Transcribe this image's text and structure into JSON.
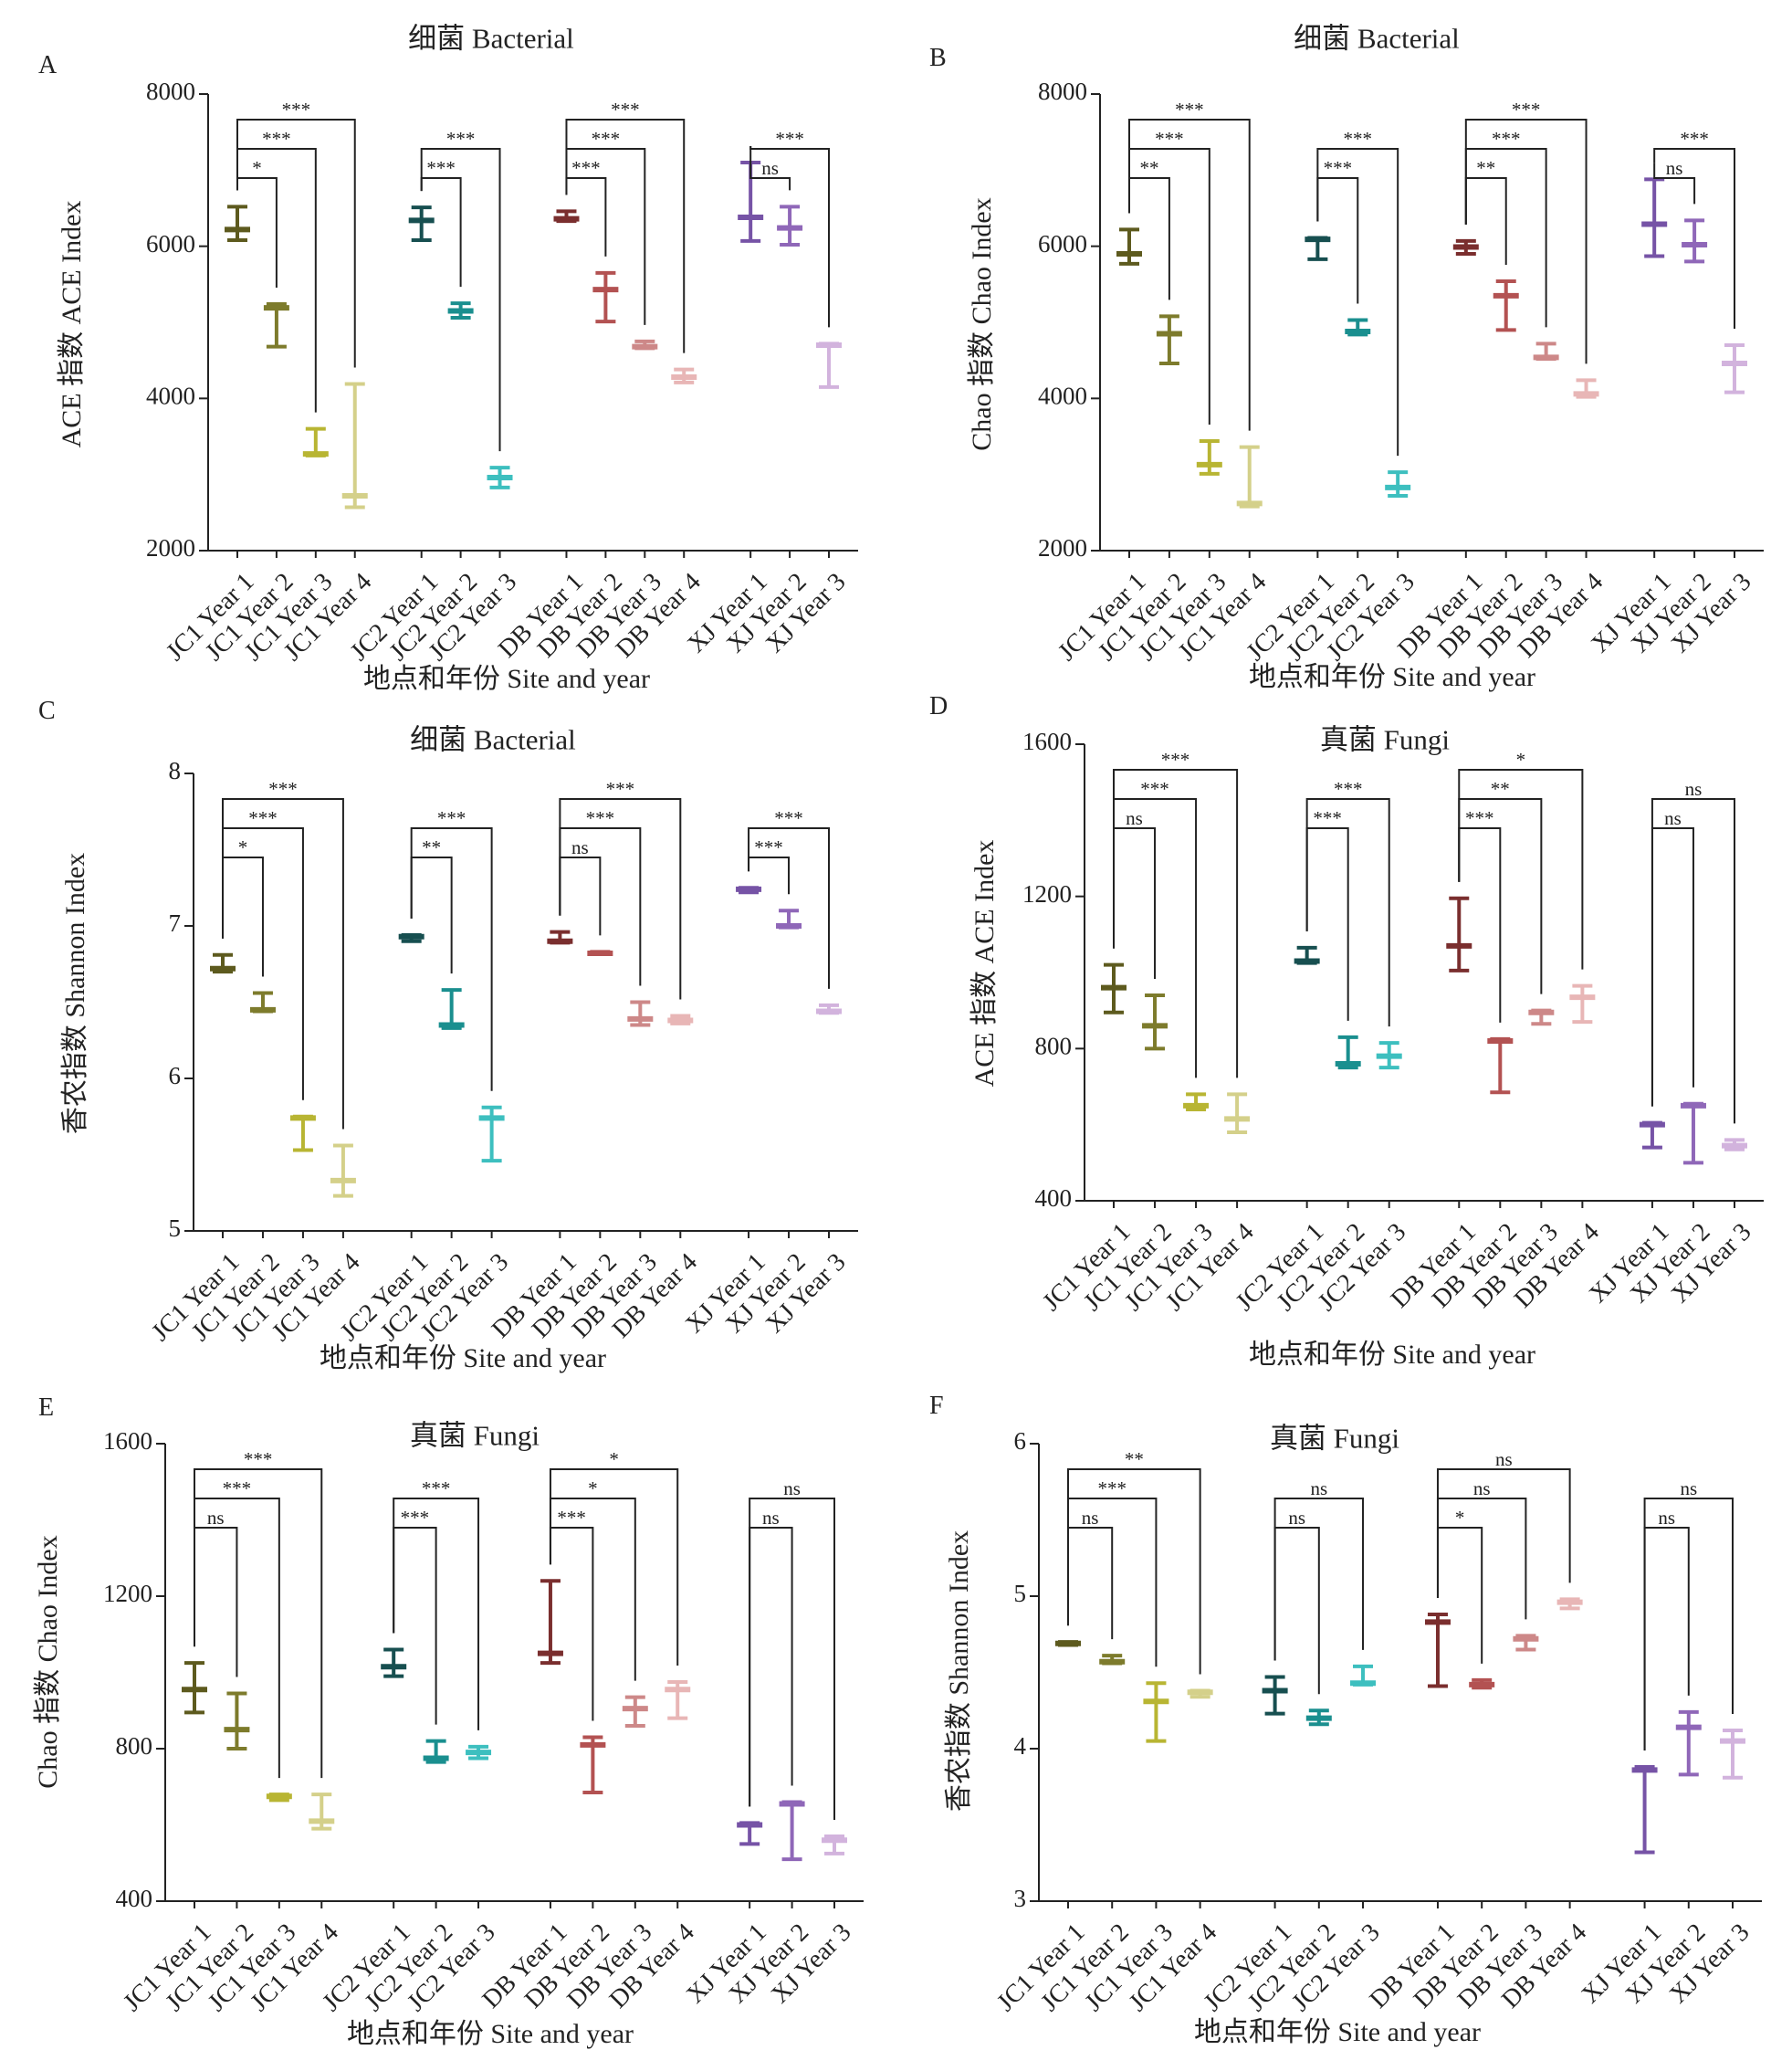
{
  "colors": {
    "JC1 Year 1": "#5d5a1e",
    "JC1 Year 2": "#7d7b2c",
    "JC1 Year 3": "#b8b533",
    "JC1 Year 4": "#d4d08a",
    "JC2 Year 1": "#174f50",
    "JC2 Year 2": "#1a8f8f",
    "JC2 Year 3": "#3dbfbf",
    "DB Year 1": "#7a2e2e",
    "DB Year 2": "#b35252",
    "DB Year 3": "#cd8888",
    "DB Year 4": "#e8b6b6",
    "XJ Year 1": "#7653a6",
    "XJ Year 2": "#8f67b8",
    "XJ Year 3": "#d2b3dd"
  },
  "categories": [
    "JC1 Year 1",
    "JC1 Year 2",
    "JC1 Year 3",
    "JC1 Year 4",
    "JC2 Year 1",
    "JC2 Year 2",
    "JC2 Year 3",
    "DB Year 1",
    "DB Year 2",
    "DB Year 3",
    "DB Year 4",
    "XJ Year 1",
    "XJ Year 2",
    "XJ Year 3"
  ],
  "chart_data": [
    {
      "panel": "A",
      "type": "scatter",
      "title": "细菌 Bacterial",
      "ylabel": "ACE 指数 ACE Index",
      "xlabel": "地点和年份 Site and year",
      "ylim": [
        2000,
        8000
      ],
      "yticks": [
        "2000",
        "4000",
        "6000",
        "8000"
      ],
      "series": [
        {
          "name": "JC1 Year 1",
          "mean": 6220,
          "low": 6080,
          "high": 6520
        },
        {
          "name": "JC1 Year 2",
          "mean": 5190,
          "low": 4680,
          "high": 5240
        },
        {
          "name": "JC1 Year 3",
          "mean": 3270,
          "low": 3250,
          "high": 3600
        },
        {
          "name": "JC1 Year 4",
          "mean": 2720,
          "low": 2570,
          "high": 4190
        },
        {
          "name": "JC2 Year 1",
          "mean": 6340,
          "low": 6080,
          "high": 6510
        },
        {
          "name": "JC2 Year 2",
          "mean": 5150,
          "low": 5060,
          "high": 5250
        },
        {
          "name": "JC2 Year 3",
          "mean": 2960,
          "low": 2830,
          "high": 3090
        },
        {
          "name": "DB Year 1",
          "mean": 6360,
          "low": 6330,
          "high": 6460
        },
        {
          "name": "DB Year 2",
          "mean": 5430,
          "low": 5010,
          "high": 5650
        },
        {
          "name": "DB Year 3",
          "mean": 4680,
          "low": 4660,
          "high": 4750
        },
        {
          "name": "DB Year 4",
          "mean": 4280,
          "low": 4210,
          "high": 4380
        },
        {
          "name": "XJ Year 1",
          "mean": 6380,
          "low": 6070,
          "high": 7100
        },
        {
          "name": "XJ Year 2",
          "mean": 6240,
          "low": 6020,
          "high": 6520
        },
        {
          "name": "XJ Year 3",
          "mean": 4700,
          "low": 4150,
          "high": 4720
        }
      ],
      "brackets": [
        {
          "from": "JC1 Year 1",
          "to": "JC1 Year 2",
          "label": "*"
        },
        {
          "from": "JC1 Year 1",
          "to": "JC1 Year 3",
          "label": "***"
        },
        {
          "from": "JC1 Year 1",
          "to": "JC1 Year 4",
          "label": "***"
        },
        {
          "from": "JC2 Year 1",
          "to": "JC2 Year 2",
          "label": "***"
        },
        {
          "from": "JC2 Year 1",
          "to": "JC2 Year 3",
          "label": "***"
        },
        {
          "from": "DB Year 1",
          "to": "DB Year 2",
          "label": "***"
        },
        {
          "from": "DB Year 1",
          "to": "DB Year 3",
          "label": "***"
        },
        {
          "from": "DB Year 1",
          "to": "DB Year 4",
          "label": "***"
        },
        {
          "from": "XJ Year 1",
          "to": "XJ Year 2",
          "label": "ns"
        },
        {
          "from": "XJ Year 1",
          "to": "XJ Year 3",
          "label": "***"
        }
      ]
    },
    {
      "panel": "B",
      "type": "scatter",
      "title": "细菌 Bacterial",
      "ylabel": "Chao 指数 Chao Index",
      "xlabel": "地点和年份 Site and year",
      "ylim": [
        2000,
        8000
      ],
      "yticks": [
        "2000",
        "4000",
        "6000",
        "8000"
      ],
      "series": [
        {
          "name": "JC1 Year 1",
          "mean": 5900,
          "low": 5770,
          "high": 6220
        },
        {
          "name": "JC1 Year 2",
          "mean": 4850,
          "low": 4460,
          "high": 5080
        },
        {
          "name": "JC1 Year 3",
          "mean": 3130,
          "low": 3010,
          "high": 3440
        },
        {
          "name": "JC1 Year 4",
          "mean": 2620,
          "low": 2580,
          "high": 3360
        },
        {
          "name": "JC2 Year 1",
          "mean": 6090,
          "low": 5830,
          "high": 6110
        },
        {
          "name": "JC2 Year 2",
          "mean": 4880,
          "low": 4840,
          "high": 5030
        },
        {
          "name": "JC2 Year 3",
          "mean": 2830,
          "low": 2720,
          "high": 3030
        },
        {
          "name": "DB Year 1",
          "mean": 5990,
          "low": 5900,
          "high": 6070
        },
        {
          "name": "DB Year 2",
          "mean": 5350,
          "low": 4900,
          "high": 5540
        },
        {
          "name": "DB Year 3",
          "mean": 4540,
          "low": 4520,
          "high": 4720
        },
        {
          "name": "DB Year 4",
          "mean": 4060,
          "low": 4020,
          "high": 4240
        },
        {
          "name": "XJ Year 1",
          "mean": 6290,
          "low": 5870,
          "high": 6880
        },
        {
          "name": "XJ Year 2",
          "mean": 6020,
          "low": 5800,
          "high": 6340
        },
        {
          "name": "XJ Year 3",
          "mean": 4460,
          "low": 4080,
          "high": 4700
        }
      ],
      "brackets": [
        {
          "from": "JC1 Year 1",
          "to": "JC1 Year 2",
          "label": "**"
        },
        {
          "from": "JC1 Year 1",
          "to": "JC1 Year 3",
          "label": "***"
        },
        {
          "from": "JC1 Year 1",
          "to": "JC1 Year 4",
          "label": "***"
        },
        {
          "from": "JC2 Year 1",
          "to": "JC2 Year 2",
          "label": "***"
        },
        {
          "from": "JC2 Year 1",
          "to": "JC2 Year 3",
          "label": "***"
        },
        {
          "from": "DB Year 1",
          "to": "DB Year 2",
          "label": "**"
        },
        {
          "from": "DB Year 1",
          "to": "DB Year 3",
          "label": "***"
        },
        {
          "from": "DB Year 1",
          "to": "DB Year 4",
          "label": "***"
        },
        {
          "from": "XJ Year 1",
          "to": "XJ Year 2",
          "label": "ns"
        },
        {
          "from": "XJ Year 1",
          "to": "XJ Year 3",
          "label": "***"
        }
      ]
    },
    {
      "panel": "C",
      "type": "scatter",
      "title": "细菌 Bacterial",
      "ylabel": "香农指数 Shannon Index",
      "xlabel": "地点和年份 Site and year",
      "ylim": [
        5,
        8
      ],
      "yticks": [
        "5",
        "6",
        "7",
        "8"
      ],
      "series": [
        {
          "name": "JC1 Year 1",
          "mean": 6.72,
          "low": 6.7,
          "high": 6.81
        },
        {
          "name": "JC1 Year 2",
          "mean": 6.45,
          "low": 6.44,
          "high": 6.56
        },
        {
          "name": "JC1 Year 3",
          "mean": 5.74,
          "low": 5.53,
          "high": 5.75
        },
        {
          "name": "JC1 Year 4",
          "mean": 5.33,
          "low": 5.23,
          "high": 5.56
        },
        {
          "name": "JC2 Year 1",
          "mean": 6.93,
          "low": 6.9,
          "high": 6.94
        },
        {
          "name": "JC2 Year 2",
          "mean": 6.35,
          "low": 6.33,
          "high": 6.58
        },
        {
          "name": "JC2 Year 3",
          "mean": 5.74,
          "low": 5.46,
          "high": 5.81
        },
        {
          "name": "DB Year 1",
          "mean": 6.9,
          "low": 6.89,
          "high": 6.96
        },
        {
          "name": "DB Year 2",
          "mean": 6.82,
          "low": 6.82,
          "high": 6.83
        },
        {
          "name": "DB Year 3",
          "mean": 6.39,
          "low": 6.35,
          "high": 6.5
        },
        {
          "name": "DB Year 4",
          "mean": 6.38,
          "low": 6.36,
          "high": 6.41
        },
        {
          "name": "XJ Year 1",
          "mean": 7.24,
          "low": 7.22,
          "high": 7.25
        },
        {
          "name": "XJ Year 2",
          "mean": 7.0,
          "low": 6.99,
          "high": 7.1
        },
        {
          "name": "XJ Year 3",
          "mean": 6.44,
          "low": 6.43,
          "high": 6.48
        }
      ],
      "brackets": [
        {
          "from": "JC1 Year 1",
          "to": "JC1 Year 2",
          "label": "*"
        },
        {
          "from": "JC1 Year 1",
          "to": "JC1 Year 3",
          "label": "***"
        },
        {
          "from": "JC1 Year 1",
          "to": "JC1 Year 4",
          "label": "***"
        },
        {
          "from": "JC2 Year 1",
          "to": "JC2 Year 2",
          "label": "**"
        },
        {
          "from": "JC2 Year 1",
          "to": "JC2 Year 3",
          "label": "***"
        },
        {
          "from": "DB Year 1",
          "to": "DB Year 2",
          "label": "ns"
        },
        {
          "from": "DB Year 1",
          "to": "DB Year 3",
          "label": "***"
        },
        {
          "from": "DB Year 1",
          "to": "DB Year 4",
          "label": "***"
        },
        {
          "from": "XJ Year 1",
          "to": "XJ Year 2",
          "label": "***"
        },
        {
          "from": "XJ Year 1",
          "to": "XJ Year 3",
          "label": "***"
        }
      ]
    },
    {
      "panel": "D",
      "type": "scatter",
      "title": "真菌 Fungi",
      "ylabel": "ACE 指数 ACE Index",
      "xlabel": "地点和年份 Site and year",
      "ylim": [
        400,
        1600
      ],
      "yticks": [
        "400",
        "800",
        "1200",
        "1600"
      ],
      "series": [
        {
          "name": "JC1 Year 1",
          "mean": 960,
          "low": 895,
          "high": 1020
        },
        {
          "name": "JC1 Year 2",
          "mean": 860,
          "low": 800,
          "high": 940
        },
        {
          "name": "JC1 Year 3",
          "mean": 650,
          "low": 640,
          "high": 680
        },
        {
          "name": "JC1 Year 4",
          "mean": 615,
          "low": 580,
          "high": 680
        },
        {
          "name": "JC2 Year 1",
          "mean": 1030,
          "low": 1025,
          "high": 1065
        },
        {
          "name": "JC2 Year 2",
          "mean": 760,
          "low": 750,
          "high": 830
        },
        {
          "name": "JC2 Year 3",
          "mean": 780,
          "low": 750,
          "high": 815
        },
        {
          "name": "DB Year 1",
          "mean": 1070,
          "low": 1005,
          "high": 1195
        },
        {
          "name": "DB Year 2",
          "mean": 820,
          "low": 685,
          "high": 825
        },
        {
          "name": "DB Year 3",
          "mean": 895,
          "low": 865,
          "high": 900
        },
        {
          "name": "DB Year 4",
          "mean": 935,
          "low": 870,
          "high": 965
        },
        {
          "name": "XJ Year 1",
          "mean": 600,
          "low": 540,
          "high": 605
        },
        {
          "name": "XJ Year 2",
          "mean": 650,
          "low": 500,
          "high": 655
        },
        {
          "name": "XJ Year 3",
          "mean": 545,
          "low": 535,
          "high": 560
        }
      ],
      "brackets": [
        {
          "from": "JC1 Year 1",
          "to": "JC1 Year 2",
          "label": "ns"
        },
        {
          "from": "JC1 Year 1",
          "to": "JC1 Year 3",
          "label": "***"
        },
        {
          "from": "JC1 Year 1",
          "to": "JC1 Year 4",
          "label": "***"
        },
        {
          "from": "JC2 Year 1",
          "to": "JC2 Year 2",
          "label": "***"
        },
        {
          "from": "JC2 Year 1",
          "to": "JC2 Year 3",
          "label": "***"
        },
        {
          "from": "DB Year 1",
          "to": "DB Year 2",
          "label": "***"
        },
        {
          "from": "DB Year 1",
          "to": "DB Year 3",
          "label": "**"
        },
        {
          "from": "DB Year 1",
          "to": "DB Year 4",
          "label": "*"
        },
        {
          "from": "XJ Year 1",
          "to": "XJ Year 2",
          "label": "ns"
        },
        {
          "from": "XJ Year 1",
          "to": "XJ Year 3",
          "label": "ns"
        }
      ]
    },
    {
      "panel": "E",
      "type": "scatter",
      "title": "真菌 Fungi",
      "ylabel": "Chao 指数 Chao Index",
      "xlabel": "地点和年份 Site and year",
      "ylim": [
        400,
        1600
      ],
      "yticks": [
        "400",
        "800",
        "1200",
        "1600"
      ],
      "series": [
        {
          "name": "JC1 Year 1",
          "mean": 955,
          "low": 895,
          "high": 1025
        },
        {
          "name": "JC1 Year 2",
          "mean": 850,
          "low": 800,
          "high": 945
        },
        {
          "name": "JC1 Year 3",
          "mean": 675,
          "low": 665,
          "high": 680
        },
        {
          "name": "JC1 Year 4",
          "mean": 610,
          "low": 590,
          "high": 680
        },
        {
          "name": "JC2 Year 1",
          "mean": 1015,
          "low": 990,
          "high": 1060
        },
        {
          "name": "JC2 Year 2",
          "mean": 775,
          "low": 765,
          "high": 820
        },
        {
          "name": "JC2 Year 3",
          "mean": 790,
          "low": 775,
          "high": 805
        },
        {
          "name": "DB Year 1",
          "mean": 1050,
          "low": 1025,
          "high": 1240
        },
        {
          "name": "DB Year 2",
          "mean": 810,
          "low": 685,
          "high": 830
        },
        {
          "name": "DB Year 3",
          "mean": 905,
          "low": 860,
          "high": 935
        },
        {
          "name": "DB Year 4",
          "mean": 955,
          "low": 880,
          "high": 975
        },
        {
          "name": "XJ Year 1",
          "mean": 600,
          "low": 550,
          "high": 605
        },
        {
          "name": "XJ Year 2",
          "mean": 655,
          "low": 510,
          "high": 660
        },
        {
          "name": "XJ Year 3",
          "mean": 560,
          "low": 525,
          "high": 570
        }
      ],
      "brackets": [
        {
          "from": "JC1 Year 1",
          "to": "JC1 Year 2",
          "label": "ns"
        },
        {
          "from": "JC1 Year 1",
          "to": "JC1 Year 3",
          "label": "***"
        },
        {
          "from": "JC1 Year 1",
          "to": "JC1 Year 4",
          "label": "***"
        },
        {
          "from": "JC2 Year 1",
          "to": "JC2 Year 2",
          "label": "***"
        },
        {
          "from": "JC2 Year 1",
          "to": "JC2 Year 3",
          "label": "***"
        },
        {
          "from": "DB Year 1",
          "to": "DB Year 2",
          "label": "***"
        },
        {
          "from": "DB Year 1",
          "to": "DB Year 3",
          "label": "*"
        },
        {
          "from": "DB Year 1",
          "to": "DB Year 4",
          "label": "*"
        },
        {
          "from": "XJ Year 1",
          "to": "XJ Year 2",
          "label": "ns"
        },
        {
          "from": "XJ Year 1",
          "to": "XJ Year 3",
          "label": "ns"
        }
      ]
    },
    {
      "panel": "F",
      "type": "scatter",
      "title": "真菌 Fungi",
      "ylabel": "香农指数 Shannon Index",
      "xlabel": "地点和年份 Site and year",
      "ylim": [
        3,
        6
      ],
      "yticks": [
        "3",
        "4",
        "5",
        "6"
      ],
      "series": [
        {
          "name": "JC1 Year 1",
          "mean": 4.69,
          "low": 4.68,
          "high": 4.7
        },
        {
          "name": "JC1 Year 2",
          "mean": 4.57,
          "low": 4.56,
          "high": 4.61
        },
        {
          "name": "JC1 Year 3",
          "mean": 4.31,
          "low": 4.05,
          "high": 4.43
        },
        {
          "name": "JC1 Year 4",
          "mean": 4.37,
          "low": 4.34,
          "high": 4.38
        },
        {
          "name": "JC2 Year 1",
          "mean": 4.38,
          "low": 4.23,
          "high": 4.47
        },
        {
          "name": "JC2 Year 2",
          "mean": 4.2,
          "low": 4.16,
          "high": 4.25
        },
        {
          "name": "JC2 Year 3",
          "mean": 4.43,
          "low": 4.42,
          "high": 4.54
        },
        {
          "name": "DB Year 1",
          "mean": 4.83,
          "low": 4.41,
          "high": 4.88
        },
        {
          "name": "DB Year 2",
          "mean": 4.42,
          "low": 4.4,
          "high": 4.45
        },
        {
          "name": "DB Year 3",
          "mean": 4.72,
          "low": 4.65,
          "high": 4.74
        },
        {
          "name": "DB Year 4",
          "mean": 4.96,
          "low": 4.92,
          "high": 4.98
        },
        {
          "name": "XJ Year 1",
          "mean": 3.86,
          "low": 3.32,
          "high": 3.88
        },
        {
          "name": "XJ Year 2",
          "mean": 4.14,
          "low": 3.83,
          "high": 4.24
        },
        {
          "name": "XJ Year 3",
          "mean": 4.05,
          "low": 3.81,
          "high": 4.12
        }
      ],
      "brackets": [
        {
          "from": "JC1 Year 1",
          "to": "JC1 Year 2",
          "label": "ns"
        },
        {
          "from": "JC1 Year 1",
          "to": "JC1 Year 3",
          "label": "***"
        },
        {
          "from": "JC1 Year 1",
          "to": "JC1 Year 4",
          "label": "**"
        },
        {
          "from": "JC2 Year 1",
          "to": "JC2 Year 2",
          "label": "ns"
        },
        {
          "from": "JC2 Year 1",
          "to": "JC2 Year 3",
          "label": "ns"
        },
        {
          "from": "DB Year 1",
          "to": "DB Year 2",
          "label": "*"
        },
        {
          "from": "DB Year 1",
          "to": "DB Year 3",
          "label": "ns"
        },
        {
          "from": "DB Year 1",
          "to": "DB Year 4",
          "label": "ns"
        },
        {
          "from": "XJ Year 1",
          "to": "XJ Year 2",
          "label": "ns"
        },
        {
          "from": "XJ Year 1",
          "to": "XJ Year 3",
          "label": "ns"
        }
      ]
    }
  ]
}
